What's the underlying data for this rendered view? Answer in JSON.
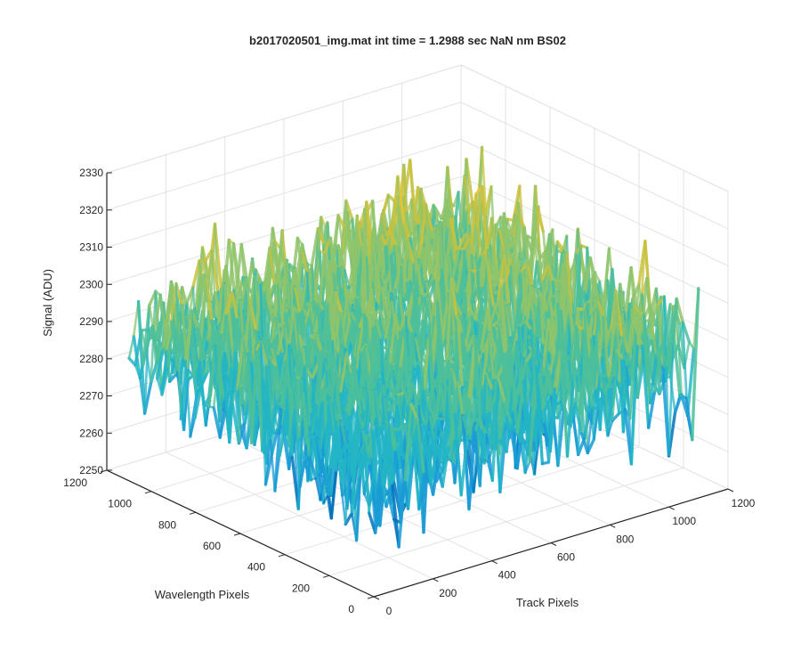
{
  "chart_data": {
    "type": "surface",
    "title": "b2017020501_img.mat int time = 1.2988 sec  NaN nm BS02",
    "xlabel": "Track Pixels",
    "ylabel": "Wavelength Pixels",
    "zlabel": "Signal (ADU)",
    "xlim": [
      0,
      1200
    ],
    "ylim": [
      0,
      1200
    ],
    "zlim": [
      2250,
      2330
    ],
    "x_ticks": [
      0,
      200,
      400,
      600,
      800,
      1000,
      1200
    ],
    "y_ticks": [
      0,
      200,
      400,
      600,
      800,
      1000,
      1200
    ],
    "z_ticks": [
      2250,
      2260,
      2270,
      2280,
      2290,
      2300,
      2310,
      2320,
      2330
    ],
    "x_tick_labels": [
      "0",
      "200",
      "400",
      "600",
      "800",
      "1000",
      "1200"
    ],
    "y_tick_labels": [
      "0",
      "200",
      "400",
      "600",
      "800",
      "1000",
      "1200"
    ],
    "z_tick_labels": [
      "2250",
      "2260",
      "2270",
      "2280",
      "2290",
      "2300",
      "2310",
      "2320",
      "2330"
    ],
    "grid": true,
    "data_extent": {
      "x": [
        0,
        1100
      ],
      "y": [
        0,
        1100
      ]
    },
    "surface_mean_range": [
      2279,
      2298
    ],
    "noise_amplitude": 9,
    "colormap": [
      "#0072bd",
      "#1a9bd6",
      "#23b5c5",
      "#4dbf9a",
      "#8fc46b",
      "#c8c23e",
      "#eac335"
    ]
  }
}
